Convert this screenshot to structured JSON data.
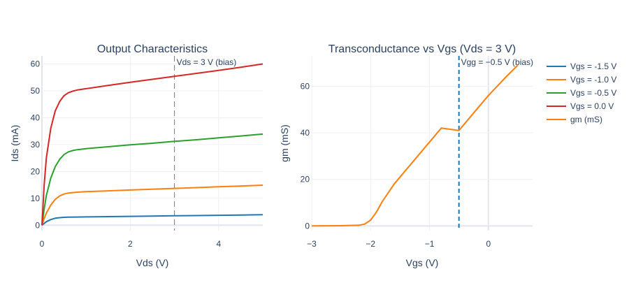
{
  "chart_data": [
    {
      "type": "line",
      "title": "Output Characteristics",
      "xlabel": "Vds (V)",
      "ylabel": "Ids (mA)",
      "xlim": [
        0,
        5
      ],
      "ylim": [
        -2,
        63
      ],
      "xticks": [
        0,
        2,
        4
      ],
      "xtick_labels": [
        "0",
        "2",
        "4"
      ],
      "yticks": [
        0,
        10,
        20,
        30,
        40,
        50,
        60
      ],
      "ytick_labels": [
        "0",
        "10",
        "20",
        "30",
        "40",
        "50",
        "60"
      ],
      "grid": true,
      "vline": {
        "x": 3,
        "style": "dash",
        "color": "#777777"
      },
      "annotation": "Vds = 3 V (bias)",
      "series": [
        {
          "name": "Vgs = -1.5 V",
          "color": "#1f77b4",
          "x": [
            0,
            0.1,
            0.2,
            0.3,
            0.4,
            0.5,
            0.6,
            0.8,
            1,
            1.5,
            2,
            2.5,
            3,
            3.5,
            4,
            4.5,
            5
          ],
          "y": [
            0,
            1.3,
            2.1,
            2.6,
            2.8,
            2.95,
            3.0,
            3.05,
            3.1,
            3.2,
            3.3,
            3.4,
            3.5,
            3.6,
            3.7,
            3.8,
            3.9
          ]
        },
        {
          "name": "Vgs = -1.0 V",
          "color": "#ff7f0e",
          "x": [
            0,
            0.05,
            0.1,
            0.2,
            0.3,
            0.4,
            0.5,
            0.6,
            0.8,
            1,
            1.5,
            2,
            2.5,
            3,
            3.5,
            4,
            4.5,
            5
          ],
          "y": [
            0,
            2.5,
            4.5,
            7.5,
            9.6,
            10.9,
            11.6,
            12.0,
            12.3,
            12.5,
            12.8,
            13.1,
            13.4,
            13.7,
            14.0,
            14.3,
            14.6,
            14.9
          ]
        },
        {
          "name": "Vgs = -0.5 V",
          "color": "#2ca02c",
          "x": [
            0,
            0.05,
            0.1,
            0.2,
            0.3,
            0.4,
            0.5,
            0.6,
            0.7,
            0.8,
            1,
            1.5,
            2,
            2.5,
            3,
            3.5,
            4,
            4.5,
            5
          ],
          "y": [
            0,
            6,
            11,
            17.5,
            21.8,
            24.5,
            26.3,
            27.3,
            27.8,
            28.1,
            28.5,
            29.2,
            29.9,
            30.5,
            31.2,
            31.8,
            32.5,
            33.2,
            33.9
          ]
        },
        {
          "name": "Vgs = 0.0 V",
          "color": "#d62728",
          "x": [
            0,
            0.05,
            0.1,
            0.2,
            0.3,
            0.4,
            0.5,
            0.6,
            0.7,
            0.8,
            1,
            1.5,
            2,
            2.5,
            3,
            3.5,
            4,
            4.5,
            5
          ],
          "y": [
            0,
            15,
            25,
            36,
            42.5,
            46,
            48.2,
            49.3,
            49.9,
            50.3,
            50.8,
            52,
            53.2,
            54.3,
            55.4,
            56.5,
            57.6,
            58.8,
            60
          ]
        }
      ]
    },
    {
      "type": "line",
      "title": "Transconductance vs Vgs  (Vds = 3 V)",
      "xlabel": "Vgs (V)",
      "ylabel": "gm (mS)",
      "xlim": [
        -3,
        0.75
      ],
      "ylim": [
        -2,
        73
      ],
      "xticks": [
        -3,
        -2,
        -1,
        0
      ],
      "xtick_labels": [
        "−3",
        "−2",
        "−1",
        "0"
      ],
      "yticks": [
        0,
        20,
        40,
        60
      ],
      "ytick_labels": [
        "0",
        "20",
        "40",
        "60"
      ],
      "grid": true,
      "vline": {
        "x": -0.5,
        "style": "dash",
        "color": "#1f77b4"
      },
      "annotation": "Vgg = −0.5 V (bias)",
      "series": [
        {
          "name": "gm (mS)",
          "color": "#ff7f0e",
          "x": [
            -3,
            -2.5,
            -2.2,
            -2.1,
            -2.0,
            -1.9,
            -1.8,
            -1.6,
            -1.2,
            -0.8,
            -0.5,
            -0.2,
            0,
            0.3,
            0.5
          ],
          "y": [
            0,
            0.1,
            0.3,
            0.8,
            2.5,
            6,
            10.5,
            18,
            30,
            42,
            41,
            50,
            56,
            64,
            69
          ]
        }
      ]
    }
  ],
  "legend": {
    "placement": "top-right",
    "items": [
      {
        "label": "Vgs = -1.5 V",
        "color": "#1f77b4"
      },
      {
        "label": "Vgs = -1.0 V",
        "color": "#ff7f0e"
      },
      {
        "label": "Vgs = -0.5 V",
        "color": "#2ca02c"
      },
      {
        "label": "Vgs = 0.0 V",
        "color": "#d62728"
      },
      {
        "label": "gm (mS)",
        "color": "#ff7f0e"
      }
    ]
  }
}
